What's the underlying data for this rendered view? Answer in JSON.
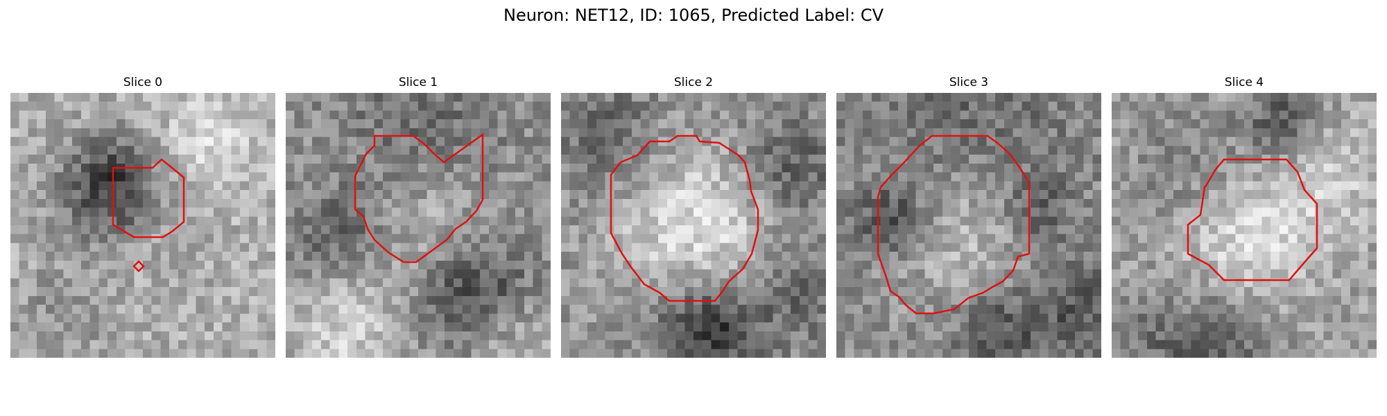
{
  "figure": {
    "title": "Neuron: NET12, ID: 1065, Predicted Label: CV",
    "contour_color": "#e01010",
    "panels": [
      {
        "title": "Slice 0"
      },
      {
        "title": "Slice 1"
      },
      {
        "title": "Slice 2"
      },
      {
        "title": "Slice 3"
      },
      {
        "title": "Slice 4"
      }
    ]
  }
}
